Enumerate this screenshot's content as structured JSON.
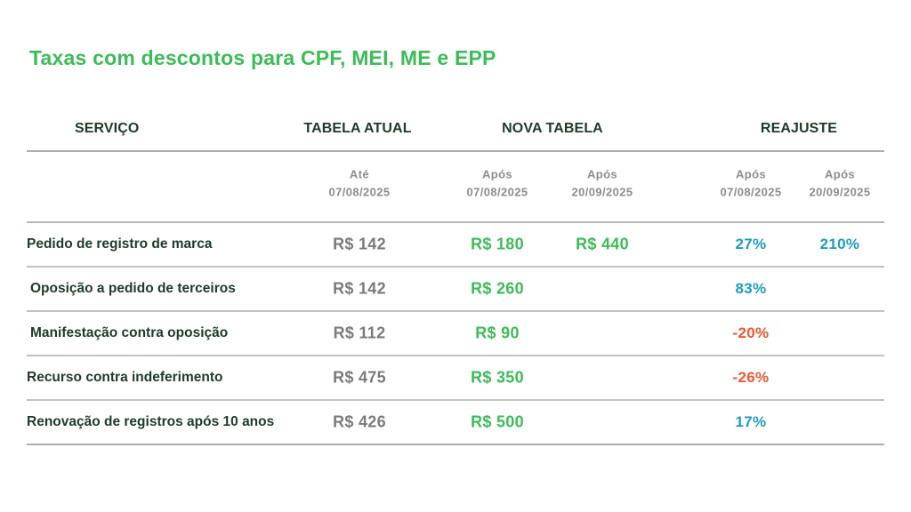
{
  "page": {
    "title": "Taxas com descontos para CPF, MEI, ME e EPP"
  },
  "colors": {
    "title_green": "#3cbc58",
    "header_dark_green": "#1d3b2a",
    "fee_gray": "#7b7b7b",
    "fee_green": "#3cbc58",
    "pct_teal": "#1f9cba",
    "pct_red": "#f0552e",
    "line_gray": "#b2b8af"
  },
  "table": {
    "headers": {
      "service": "SERVIÇO",
      "current": "TABELA ATUAL",
      "new": "NOVA TABELA",
      "adjustment": "REAJUSTE"
    },
    "subheaders": {
      "current_until": {
        "label": "Até",
        "date": "07/08/2025"
      },
      "new_after_1": {
        "label": "Após",
        "date": "07/08/2025"
      },
      "new_after_2": {
        "label": "Após",
        "date": "20/09/2025"
      },
      "adj_after_1": {
        "label": "Após",
        "date": "07/08/2025"
      },
      "adj_after_2": {
        "label": "Após",
        "date": "20/09/2025"
      }
    },
    "rows": [
      {
        "service": "Pedido de registro de marca",
        "current": "R$ 142",
        "new_1": "R$ 180",
        "new_2": "R$ 440",
        "adj_1": "27%",
        "adj_2": "210%",
        "trend": "positive"
      },
      {
        "service": "Oposição a pedido de terceiros",
        "current": "R$ 142",
        "new_1": "R$ 260",
        "new_2": "",
        "adj_1": "83%",
        "adj_2": "",
        "trend": "positive"
      },
      {
        "service": "Manifestação contra oposição",
        "current": "R$ 112",
        "new_1": "R$ 90",
        "new_2": "",
        "adj_1": "-20%",
        "adj_2": "",
        "trend": "negative"
      },
      {
        "service": "Recurso contra indeferimento",
        "current": "R$ 475",
        "new_1": "R$ 350",
        "new_2": "",
        "adj_1": "-26%",
        "adj_2": "",
        "trend": "negative"
      },
      {
        "service": "Renovação de registros após 10 anos",
        "current": "R$ 426",
        "new_1": "R$ 500",
        "new_2": "",
        "adj_1": "17%",
        "adj_2": "",
        "trend": "positive"
      }
    ]
  },
  "chart_data": {
    "type": "table",
    "title": "Taxas com descontos para CPF, MEI, ME e EPP",
    "columns": [
      "Serviço",
      "Tabela atual — Até 07/08/2025",
      "Nova tabela — Após 07/08/2025",
      "Nova tabela — Após 20/09/2025",
      "Reajuste — Após 07/08/2025",
      "Reajuste — Após 20/09/2025"
    ],
    "rows": [
      [
        "Pedido de registro de marca",
        "R$ 142",
        "R$ 180",
        "R$ 440",
        "27%",
        "210%"
      ],
      [
        "Oposição a pedido de terceiros",
        "R$ 142",
        "R$ 260",
        "",
        "83%",
        ""
      ],
      [
        "Manifestação contra oposição",
        "R$ 112",
        "R$ 90",
        "",
        "-20%",
        ""
      ],
      [
        "Recurso contra indeferimento",
        "R$ 475",
        "R$ 350",
        "",
        "-26%",
        ""
      ],
      [
        "Renovação de registros após 10 anos",
        "R$ 426",
        "R$ 500",
        "",
        "17%",
        ""
      ]
    ]
  }
}
